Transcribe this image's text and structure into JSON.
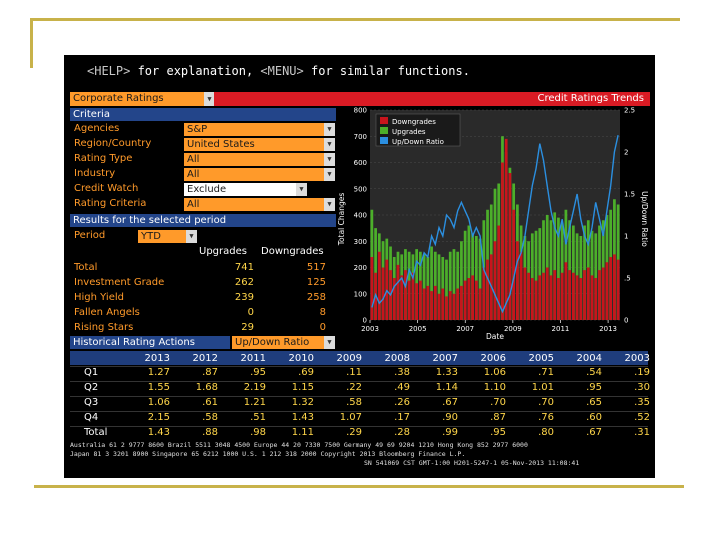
{
  "help_line": {
    "help_key": "<HELP>",
    "help_text": " for explanation, ",
    "menu_key": "<MENU>",
    "menu_text": " for similar functions."
  },
  "header": {
    "dropdown": "Corporate Ratings",
    "title": "Credit Ratings Trends"
  },
  "criteria": {
    "section": "Criteria",
    "rows": [
      {
        "label": "Agencies",
        "value": "S&P"
      },
      {
        "label": "Region/Country",
        "value": "United States"
      },
      {
        "label": "Rating Type",
        "value": "All"
      },
      {
        "label": "Industry",
        "value": "All"
      },
      {
        "label": "Credit Watch",
        "value": "Exclude"
      },
      {
        "label": "Rating Criteria",
        "value": "All"
      }
    ]
  },
  "results": {
    "section": "Results for the selected period",
    "period_label": "Period",
    "period_value": "YTD",
    "col_upgrades": "Upgrades",
    "col_downgrades": "Downgrades",
    "rows": [
      {
        "label": "Total",
        "up": "741",
        "down": "517"
      },
      {
        "label": "Investment Grade",
        "up": "262",
        "down": "125"
      },
      {
        "label": "High Yield",
        "up": "239",
        "down": "258"
      },
      {
        "label": "Fallen Angels",
        "up": "0",
        "down": "8"
      },
      {
        "label": "Rising Stars",
        "up": "29",
        "down": "0"
      }
    ]
  },
  "historical": {
    "section": "Historical Rating Actions",
    "metric": "Up/Down Ratio"
  },
  "table": {
    "years": [
      "2013",
      "2012",
      "2011",
      "2010",
      "2009",
      "2008",
      "2007",
      "2006",
      "2005",
      "2004",
      "2003"
    ],
    "rows": [
      {
        "label": "Q1",
        "values": [
          "1.27",
          ".87",
          ".95",
          ".69",
          ".11",
          ".38",
          "1.33",
          "1.06",
          ".71",
          ".54",
          ".19"
        ]
      },
      {
        "label": "Q2",
        "values": [
          "1.55",
          "1.68",
          "2.19",
          "1.15",
          ".22",
          ".49",
          "1.14",
          "1.10",
          "1.01",
          ".95",
          ".30"
        ]
      },
      {
        "label": "Q3",
        "values": [
          "1.06",
          ".61",
          "1.21",
          "1.32",
          ".58",
          ".26",
          ".67",
          ".70",
          ".70",
          ".65",
          ".35"
        ]
      },
      {
        "label": "Q4",
        "values": [
          "2.15",
          ".58",
          ".51",
          "1.43",
          "1.07",
          ".17",
          ".90",
          ".87",
          ".76",
          ".60",
          ".52"
        ]
      },
      {
        "label": "Total",
        "values": [
          "1.43",
          ".88",
          ".98",
          "1.11",
          ".29",
          ".28",
          ".99",
          ".95",
          ".80",
          ".67",
          ".31"
        ]
      }
    ]
  },
  "footer": {
    "line1": "Australia 61 2 9777 8600  Brazil 5511 3048 4500  Europe 44 20 7330 7500  Germany 49 69 9204 1210  Hong Kong 852 2977 6000",
    "line2": "Japan 81 3 3201 8900        Singapore 65 6212 1000        U.S. 1 212 318 2000        Copyright 2013 Bloomberg Finance L.P.",
    "line3": "SN 541069 CST  GMT-1:00 H201-5247-1 05-Nov-2013 11:08:41"
  },
  "chart_data": {
    "type": "bar",
    "legend": [
      "Downgrades",
      "Upgrades",
      "Up/Down Ratio"
    ],
    "xlabel": "Date",
    "ylabel": "Total Changes",
    "y2label": "Up/Down Ratio",
    "x_ticks": [
      "2003",
      "2005",
      "2007",
      "2009",
      "2011",
      "2013"
    ],
    "ylim": [
      0,
      800
    ],
    "y_ticks": [
      0,
      100,
      200,
      300,
      400,
      500,
      600,
      700,
      800
    ],
    "y2lim": [
      0,
      2.5
    ],
    "y2_ticks": [
      "0",
      ".5",
      "1",
      "1.5",
      "2",
      "2.5"
    ],
    "colors": {
      "downgrades": "#c8141c",
      "upgrades": "#4caf2a",
      "ratio": "#2b8fe0"
    },
    "downgrades": [
      240,
      180,
      260,
      200,
      230,
      190,
      160,
      210,
      170,
      190,
      150,
      180,
      140,
      150,
      120,
      130,
      110,
      130,
      100,
      120,
      90,
      110,
      100,
      120,
      130,
      150,
      160,
      170,
      150,
      120,
      200,
      230,
      250,
      300,
      360,
      600,
      690,
      560,
      420,
      300,
      260,
      200,
      180,
      160,
      150,
      170,
      180,
      200,
      170,
      190,
      160,
      180,
      220,
      190,
      180,
      170,
      160,
      190,
      200,
      170,
      160,
      190,
      200,
      220,
      240,
      250,
      230
    ],
    "upgrades": [
      420,
      350,
      330,
      300,
      310,
      280,
      240,
      260,
      250,
      270,
      260,
      250,
      270,
      260,
      250,
      240,
      280,
      260,
      250,
      240,
      230,
      260,
      270,
      260,
      300,
      340,
      360,
      330,
      320,
      310,
      380,
      420,
      440,
      500,
      520,
      700,
      640,
      580,
      520,
      440,
      360,
      320,
      300,
      330,
      340,
      350,
      380,
      400,
      380,
      410,
      390,
      370,
      420,
      380,
      360,
      330,
      320,
      360,
      380,
      340,
      330,
      360,
      380,
      400,
      420,
      460,
      440
    ],
    "ratio": [
      0.15,
      0.3,
      0.2,
      0.25,
      0.35,
      0.3,
      0.4,
      0.45,
      0.5,
      0.4,
      0.6,
      0.5,
      0.7,
      0.65,
      0.8,
      0.75,
      1.0,
      0.9,
      1.1,
      1.0,
      1.25,
      1.2,
      1.1,
      1.3,
      1.4,
      1.3,
      1.2,
      1.0,
      1.1,
      1.0,
      0.6,
      0.5,
      0.4,
      0.3,
      0.2,
      0.1,
      0.2,
      0.3,
      0.5,
      0.7,
      0.8,
      1.0,
      1.3,
      1.6,
      1.8,
      2.1,
      1.9,
      1.6,
      1.3,
      1.1,
      1.0,
      1.2,
      0.9,
      1.1,
      1.3,
      1.5,
      1.2,
      1.0,
      0.9,
      1.1,
      1.4,
      1.2,
      1.0,
      1.3,
      1.6,
      2.0,
      2.2
    ]
  }
}
